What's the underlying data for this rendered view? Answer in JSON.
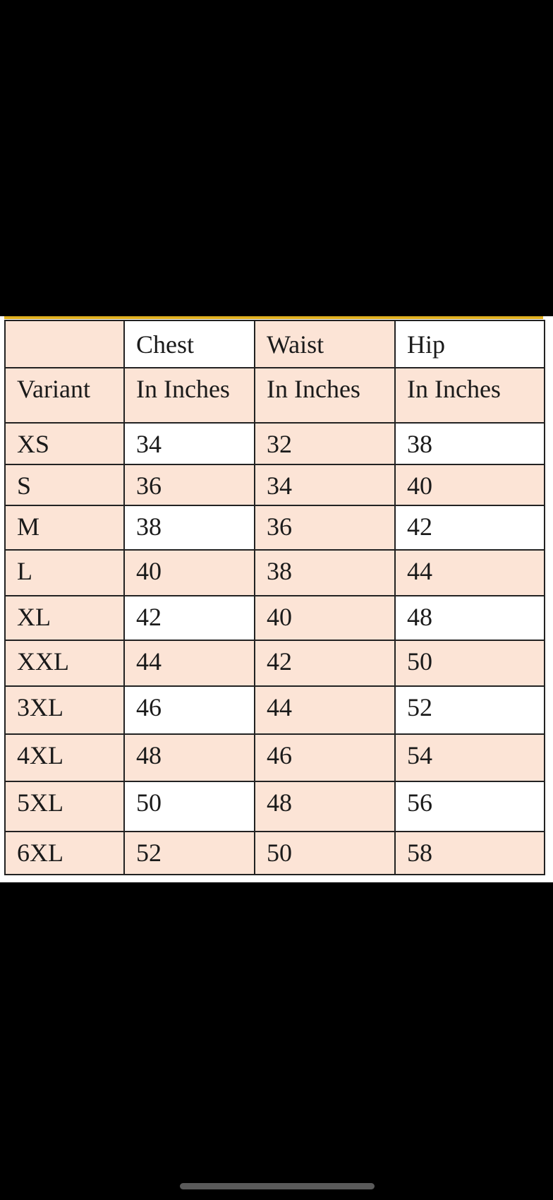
{
  "colors": {
    "cell_peach": "#fce4d6",
    "cell_white": "#ffffff",
    "border": "#222222",
    "top_rule": "#e0b020",
    "background": "#000000"
  },
  "table": {
    "header_row1": [
      "",
      "Chest",
      "Waist",
      "Hip"
    ],
    "header_row2": [
      "Variant",
      "In Inches",
      "In Inches",
      "In Inches"
    ],
    "rows": [
      [
        "XS",
        "34",
        "32",
        "38"
      ],
      [
        "S",
        "36",
        "34",
        "40"
      ],
      [
        "M",
        "38",
        "36",
        "42"
      ],
      [
        "L",
        "40",
        "38",
        "44"
      ],
      [
        "XL",
        "42",
        "40",
        "48"
      ],
      [
        "XXL",
        "44",
        "42",
        "50"
      ],
      [
        "3XL",
        "46",
        "44",
        "52"
      ],
      [
        "4XL",
        "48",
        "46",
        "54"
      ],
      [
        "5XL",
        "50",
        "48",
        "56"
      ],
      [
        "6XL",
        "52",
        "50",
        "58"
      ]
    ]
  }
}
